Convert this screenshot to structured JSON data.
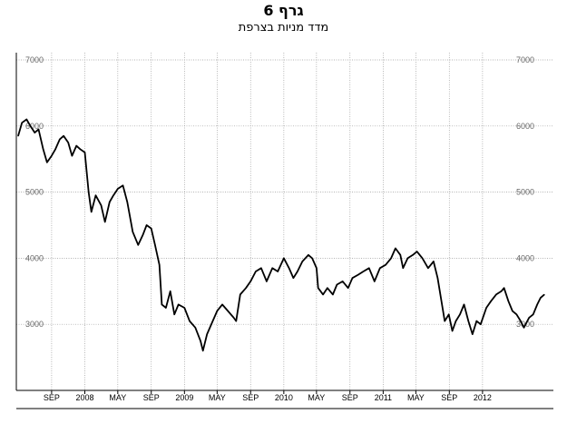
{
  "header": {
    "title": "גרף 6",
    "subtitle": "מדד מניות בצרפת"
  },
  "chart_data": {
    "type": "line",
    "title": "גרף 6",
    "subtitle": "מדד מניות בצרפת",
    "xlabel": "",
    "ylabel": "",
    "ylim": [
      2000,
      7000
    ],
    "y_ticks": [
      3000,
      4000,
      5000,
      6000,
      7000
    ],
    "y_tick_labels": [
      "3000",
      "4000",
      "5000",
      "6000",
      "7000"
    ],
    "grid": true,
    "legend": "none",
    "line_color": "#000000",
    "x_tick_labels": [
      "SEP",
      "2008",
      "MAY",
      "SEP",
      "2009",
      "MAY",
      "SEP",
      "2010",
      "MAY",
      "SEP",
      "2011",
      "MAY",
      "SEP",
      "2012"
    ],
    "x_range": [
      "2007-05-01",
      "2012-08-15"
    ],
    "x_tick_dates": [
      "2007-09-01",
      "2008-01-01",
      "2008-05-01",
      "2008-09-01",
      "2009-01-01",
      "2009-05-01",
      "2009-09-01",
      "2010-01-01",
      "2010-05-01",
      "2010-09-01",
      "2011-01-01",
      "2011-05-01",
      "2011-09-01",
      "2012-01-01"
    ],
    "series": [
      {
        "values": [
          [
            "2007-05-01",
            5850
          ],
          [
            "2007-05-15",
            6050
          ],
          [
            "2007-06-01",
            6100
          ],
          [
            "2007-06-15",
            6000
          ],
          [
            "2007-07-01",
            5900
          ],
          [
            "2007-07-15",
            5950
          ],
          [
            "2007-08-01",
            5650
          ],
          [
            "2007-08-15",
            5450
          ],
          [
            "2007-09-01",
            5550
          ],
          [
            "2007-09-15",
            5650
          ],
          [
            "2007-10-01",
            5800
          ],
          [
            "2007-10-15",
            5850
          ],
          [
            "2007-11-01",
            5750
          ],
          [
            "2007-11-15",
            5550
          ],
          [
            "2007-12-01",
            5700
          ],
          [
            "2007-12-15",
            5650
          ],
          [
            "2008-01-01",
            5600
          ],
          [
            "2008-01-15",
            5000
          ],
          [
            "2008-01-25",
            4700
          ],
          [
            "2008-02-10",
            4950
          ],
          [
            "2008-03-01",
            4800
          ],
          [
            "2008-03-15",
            4550
          ],
          [
            "2008-04-01",
            4850
          ],
          [
            "2008-04-15",
            4950
          ],
          [
            "2008-05-01",
            5050
          ],
          [
            "2008-05-20",
            5100
          ],
          [
            "2008-06-05",
            4850
          ],
          [
            "2008-06-25",
            4400
          ],
          [
            "2008-07-15",
            4200
          ],
          [
            "2008-08-01",
            4350
          ],
          [
            "2008-08-15",
            4500
          ],
          [
            "2008-09-01",
            4450
          ],
          [
            "2008-09-15",
            4200
          ],
          [
            "2008-10-01",
            3900
          ],
          [
            "2008-10-10",
            3300
          ],
          [
            "2008-10-25",
            3250
          ],
          [
            "2008-11-10",
            3500
          ],
          [
            "2008-11-25",
            3150
          ],
          [
            "2008-12-10",
            3300
          ],
          [
            "2009-01-01",
            3250
          ],
          [
            "2009-01-20",
            3050
          ],
          [
            "2009-02-10",
            2950
          ],
          [
            "2009-03-01",
            2750
          ],
          [
            "2009-03-10",
            2600
          ],
          [
            "2009-03-25",
            2850
          ],
          [
            "2009-04-15",
            3050
          ],
          [
            "2009-05-01",
            3200
          ],
          [
            "2009-05-20",
            3300
          ],
          [
            "2009-06-10",
            3200
          ],
          [
            "2009-07-01",
            3100
          ],
          [
            "2009-07-10",
            3050
          ],
          [
            "2009-07-25",
            3450
          ],
          [
            "2009-08-15",
            3550
          ],
          [
            "2009-09-01",
            3650
          ],
          [
            "2009-09-20",
            3800
          ],
          [
            "2009-10-10",
            3850
          ],
          [
            "2009-10-30",
            3650
          ],
          [
            "2009-11-20",
            3850
          ],
          [
            "2009-12-10",
            3800
          ],
          [
            "2010-01-01",
            4000
          ],
          [
            "2010-01-20",
            3850
          ],
          [
            "2010-02-05",
            3700
          ],
          [
            "2010-02-20",
            3800
          ],
          [
            "2010-03-10",
            3950
          ],
          [
            "2010-04-01",
            4050
          ],
          [
            "2010-04-15",
            4000
          ],
          [
            "2010-05-01",
            3850
          ],
          [
            "2010-05-07",
            3550
          ],
          [
            "2010-05-25",
            3450
          ],
          [
            "2010-06-10",
            3550
          ],
          [
            "2010-06-30",
            3450
          ],
          [
            "2010-07-15",
            3600
          ],
          [
            "2010-08-05",
            3650
          ],
          [
            "2010-08-25",
            3550
          ],
          [
            "2010-09-10",
            3700
          ],
          [
            "2010-10-01",
            3750
          ],
          [
            "2010-10-20",
            3800
          ],
          [
            "2010-11-10",
            3850
          ],
          [
            "2010-11-30",
            3650
          ],
          [
            "2010-12-20",
            3850
          ],
          [
            "2011-01-10",
            3900
          ],
          [
            "2011-01-30",
            4000
          ],
          [
            "2011-02-15",
            4150
          ],
          [
            "2011-03-05",
            4050
          ],
          [
            "2011-03-15",
            3850
          ],
          [
            "2011-04-01",
            4000
          ],
          [
            "2011-04-20",
            4050
          ],
          [
            "2011-05-05",
            4100
          ],
          [
            "2011-05-25",
            4000
          ],
          [
            "2011-06-15",
            3850
          ],
          [
            "2011-07-05",
            3950
          ],
          [
            "2011-07-20",
            3700
          ],
          [
            "2011-08-05",
            3300
          ],
          [
            "2011-08-15",
            3050
          ],
          [
            "2011-08-30",
            3150
          ],
          [
            "2011-09-12",
            2900
          ],
          [
            "2011-09-25",
            3050
          ],
          [
            "2011-10-10",
            3150
          ],
          [
            "2011-10-25",
            3300
          ],
          [
            "2011-11-10",
            3050
          ],
          [
            "2011-11-25",
            2850
          ],
          [
            "2011-12-10",
            3050
          ],
          [
            "2011-12-25",
            3000
          ],
          [
            "2012-01-15",
            3250
          ],
          [
            "2012-02-01",
            3350
          ],
          [
            "2012-02-20",
            3450
          ],
          [
            "2012-03-10",
            3500
          ],
          [
            "2012-03-20",
            3550
          ],
          [
            "2012-04-05",
            3350
          ],
          [
            "2012-04-20",
            3200
          ],
          [
            "2012-05-05",
            3150
          ],
          [
            "2012-05-20",
            3050
          ],
          [
            "2012-06-01",
            2950
          ],
          [
            "2012-06-20",
            3100
          ],
          [
            "2012-07-05",
            3150
          ],
          [
            "2012-07-20",
            3300
          ],
          [
            "2012-08-01",
            3400
          ],
          [
            "2012-08-15",
            3450
          ]
        ]
      }
    ]
  }
}
